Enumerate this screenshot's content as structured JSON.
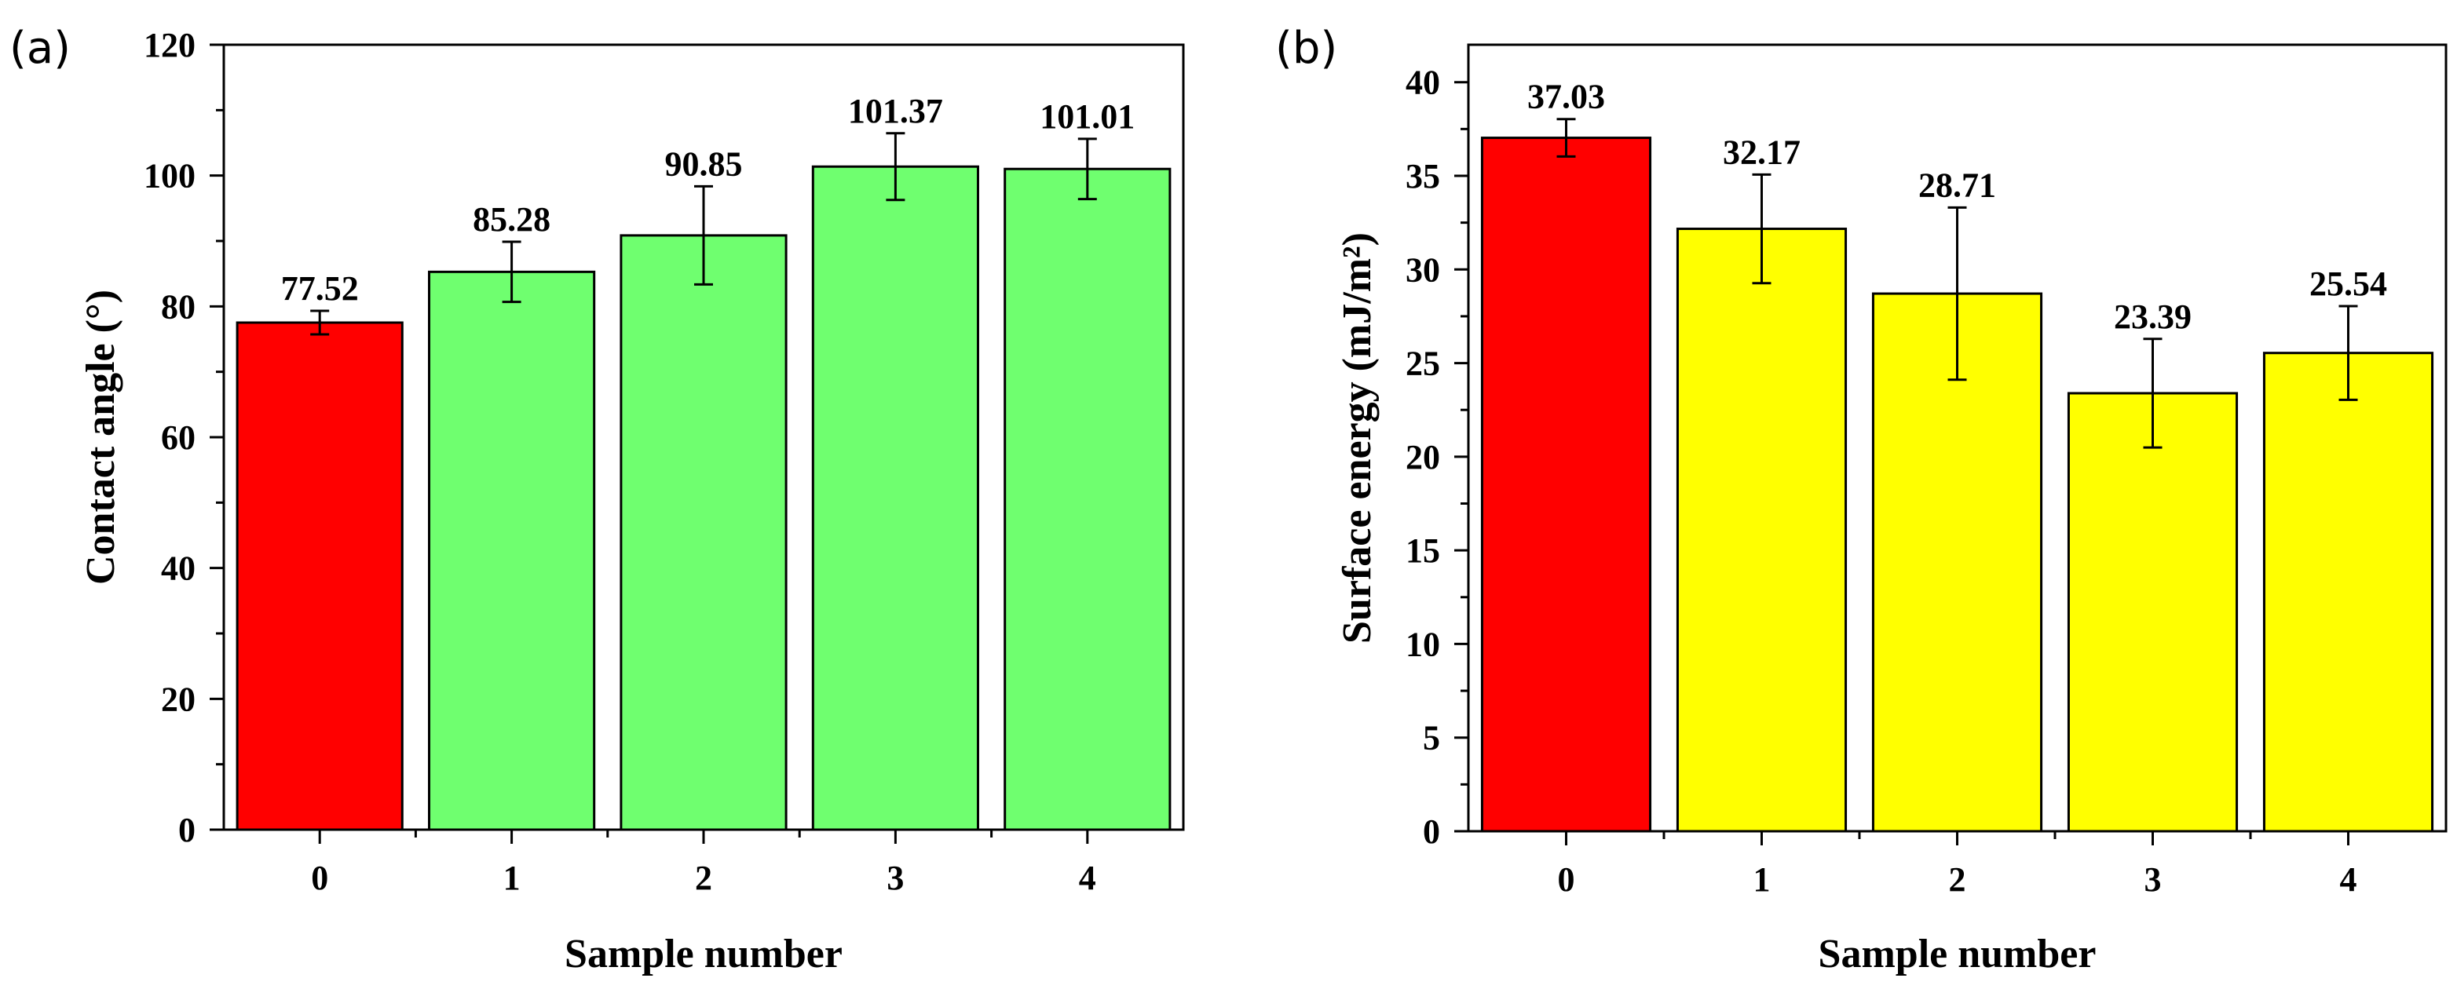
{
  "chart_data": [
    {
      "type": "bar",
      "panel_label": "(a)",
      "categories": [
        "0",
        "1",
        "2",
        "3",
        "4"
      ],
      "values": [
        77.52,
        85.28,
        90.85,
        101.37,
        101.01
      ],
      "errors": [
        1.8,
        4.6,
        7.5,
        5.1,
        4.6
      ],
      "data_labels": [
        "77.52",
        "85.28",
        "90.85",
        "101.37",
        "101.01"
      ],
      "bar_colors": [
        "#ff0000",
        "#6fff6f",
        "#6fff6f",
        "#6fff6f",
        "#6fff6f"
      ],
      "title": "",
      "xlabel": "Sample number",
      "ylabel": "Contact angle (°)",
      "ylim": [
        0,
        120
      ],
      "yticks": [
        0,
        20,
        40,
        60,
        80,
        100,
        120
      ],
      "ytick_labels": [
        "0",
        "20",
        "40",
        "60",
        "80",
        "100",
        "120"
      ],
      "grid": false
    },
    {
      "type": "bar",
      "panel_label": "(b)",
      "categories": [
        "0",
        "1",
        "2",
        "3",
        "4"
      ],
      "values": [
        37.03,
        32.17,
        28.71,
        23.39,
        25.54
      ],
      "errors": [
        1.0,
        2.9,
        4.6,
        2.9,
        2.5
      ],
      "data_labels": [
        "37.03",
        "32.17",
        "28.71",
        "23.39",
        "25.54"
      ],
      "bar_colors": [
        "#ff0000",
        "#ffff00",
        "#ffff00",
        "#ffff00",
        "#ffff00"
      ],
      "title": "",
      "xlabel": "Sample number",
      "ylabel": "Surface energy (mJ/m²)",
      "ylim": [
        0,
        42
      ],
      "yticks": [
        0,
        5,
        10,
        15,
        20,
        25,
        30,
        35,
        40
      ],
      "ytick_labels": [
        "0",
        "5",
        "10",
        "15",
        "20",
        "25",
        "30",
        "35",
        "40"
      ],
      "grid": false
    }
  ]
}
